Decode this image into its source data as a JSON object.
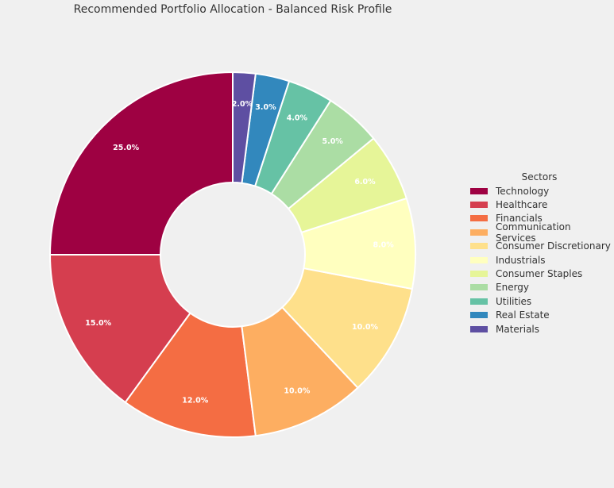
{
  "chart_data": {
    "type": "pie",
    "donut": true,
    "title": "Recommended Portfolio Allocation - Balanced Risk Profile",
    "legend_title": "Sectors",
    "legend_position": "right",
    "start": "top",
    "direction": "counterclockwise",
    "slices": [
      {
        "label": "Technology",
        "value": 25.0,
        "display": "25.0%",
        "color": "#9e0142"
      },
      {
        "label": "Healthcare",
        "value": 15.0,
        "display": "15.0%",
        "color": "#d53e4f"
      },
      {
        "label": "Financials",
        "value": 12.0,
        "display": "12.0%",
        "color": "#f46d43"
      },
      {
        "label": "Communication Services",
        "value": 10.0,
        "display": "10.0%",
        "color": "#fdae61"
      },
      {
        "label": "Consumer Discretionary",
        "value": 10.0,
        "display": "10.0%",
        "color": "#fee08b"
      },
      {
        "label": "Industrials",
        "value": 8.0,
        "display": "8.0%",
        "color": "#ffffbf"
      },
      {
        "label": "Consumer Staples",
        "value": 6.0,
        "display": "6.0%",
        "color": "#e6f598"
      },
      {
        "label": "Energy",
        "value": 5.0,
        "display": "5.0%",
        "color": "#abdda4"
      },
      {
        "label": "Utilities",
        "value": 4.0,
        "display": "4.0%",
        "color": "#66c2a5"
      },
      {
        "label": "Real Estate",
        "value": 3.0,
        "display": "3.0%",
        "color": "#3288bd"
      },
      {
        "label": "Materials",
        "value": 2.0,
        "display": "2.0%",
        "color": "#5e4fa2"
      }
    ]
  }
}
